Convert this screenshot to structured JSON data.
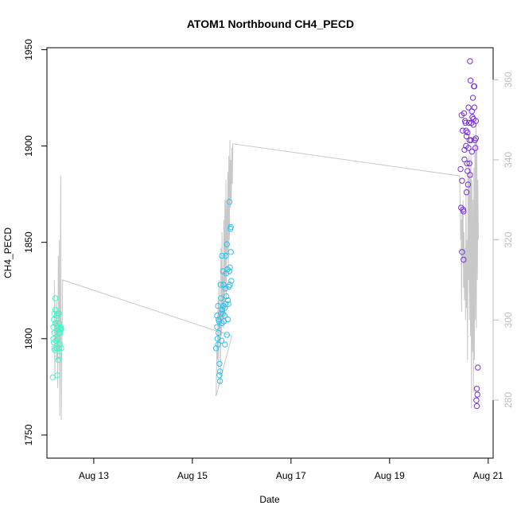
{
  "chart_data": {
    "type": "scatter",
    "title": "ATOM1 Northbound CH4_PECD",
    "xlabel": "Date",
    "ylabel": "CH4_PECD",
    "x_ticks": [
      {
        "day": 13,
        "label": "Aug 13"
      },
      {
        "day": 15,
        "label": "Aug 15"
      },
      {
        "day": 17,
        "label": "Aug 17"
      },
      {
        "day": 19,
        "label": "Aug 19"
      },
      {
        "day": 21,
        "label": "Aug 21"
      }
    ],
    "xlim": [
      12.05,
      21.1
    ],
    "y_ticks": [
      1750,
      1800,
      1850,
      1900,
      1950
    ],
    "ylim": [
      1738,
      1951
    ],
    "y2_ticks": [
      280,
      300,
      320,
      340,
      360
    ],
    "y2lim": [
      265.5,
      368
    ],
    "grid": false,
    "legend": false,
    "colors": {
      "axis": "#000000",
      "secondary_axis": "#bdbdbd",
      "secondary_line": "#c8c8c8",
      "segment_1": "#3ff7c8",
      "segment_2": "#2cc2ee",
      "segment_3": "#7a2ee6"
    },
    "scatter_series": [
      {
        "color": "segment_1",
        "x": [
          12.17,
          12.18,
          12.18,
          12.19,
          12.19,
          12.2,
          12.2,
          12.2,
          12.21,
          12.22,
          12.22,
          12.22,
          12.23,
          12.24,
          12.25,
          12.25,
          12.26,
          12.27,
          12.27,
          12.28,
          12.28,
          12.29,
          12.29,
          12.3,
          12.3,
          12.3,
          12.31,
          12.31,
          12.32,
          12.33,
          12.33,
          12.34,
          12.34
        ],
        "y": [
          1780,
          1800,
          1806,
          1798,
          1810,
          1795,
          1803,
          1813,
          1794,
          1808,
          1815,
          1821,
          1799,
          1795,
          1812,
          1812,
          1781,
          1813,
          1800,
          1806,
          1789,
          1795,
          1803,
          1808,
          1791,
          1813,
          1805,
          1797,
          1803,
          1805,
          1806,
          1795,
          1805
        ]
      },
      {
        "color": "segment_2",
        "x": [
          15.48,
          15.5,
          15.5,
          15.51,
          15.52,
          15.52,
          15.53,
          15.53,
          15.54,
          15.55,
          15.55,
          15.56,
          15.56,
          15.57,
          15.58,
          15.58,
          15.59,
          15.6,
          15.6,
          15.61,
          15.62,
          15.62,
          15.63,
          15.63,
          15.64,
          15.65,
          15.66,
          15.66,
          15.67,
          15.67,
          15.68,
          15.69,
          15.69,
          15.7,
          15.7,
          15.71,
          15.72,
          15.72,
          15.73,
          15.74,
          15.75,
          15.75,
          15.76,
          15.76,
          15.77,
          15.78,
          15.78,
          15.79
        ],
        "y": [
          1795,
          1812,
          1806,
          1800,
          1797,
          1817,
          1810,
          1803,
          1809,
          1787,
          1781,
          1783,
          1778,
          1828,
          1813,
          1821,
          1799,
          1808,
          1843,
          1815,
          1813,
          1835,
          1817,
          1828,
          1809,
          1812,
          1816,
          1797,
          1826,
          1818,
          1843,
          1834,
          1822,
          1849,
          1802,
          1836,
          1810,
          1820,
          1818,
          1827,
          1871,
          1835,
          1828,
          1837,
          1857,
          1858,
          1845,
          1830
        ]
      },
      {
        "color": "segment_3",
        "x": [
          20.44,
          20.45,
          20.46,
          20.47,
          20.47,
          20.48,
          20.49,
          20.5,
          20.5,
          20.51,
          20.52,
          20.52,
          20.53,
          20.54,
          20.55,
          20.55,
          20.56,
          20.56,
          20.57,
          20.58,
          20.58,
          20.59,
          20.6,
          20.6,
          20.61,
          20.62,
          20.62,
          20.63,
          20.63,
          20.64,
          20.65,
          20.65,
          20.66,
          20.67,
          20.67,
          20.68,
          20.69,
          20.7,
          20.7,
          20.71,
          20.72,
          20.72,
          20.73,
          20.74,
          20.75,
          20.75,
          20.76,
          20.77,
          20.77,
          20.78,
          20.79
        ],
        "y": [
          1888,
          1868,
          1916,
          1882,
          1845,
          1908,
          1867,
          1841,
          1866,
          1917,
          1898,
          1893,
          1913,
          1912,
          1908,
          1900,
          1905,
          1876,
          1891,
          1887,
          1907,
          1880,
          1920,
          1899,
          1912,
          1891,
          1903,
          1885,
          1944,
          1934,
          1903,
          1903,
          1912,
          1897,
          1918,
          1915,
          1925,
          1911,
          1914,
          1931,
          1931,
          1920,
          1903,
          1899,
          1913,
          1904,
          1768,
          1774,
          1765,
          1771,
          1785
        ]
      }
    ],
    "line_series": {
      "axis": "secondary",
      "x": [
        12.2,
        12.21,
        12.22,
        12.23,
        12.24,
        12.25,
        12.26,
        12.27,
        12.28,
        12.29,
        12.3,
        12.31,
        12.32,
        12.33,
        12.34,
        12.35,
        12.36,
        12.37,
        15.8,
        15.48,
        15.5,
        15.51,
        15.52,
        15.53,
        15.54,
        15.55,
        15.56,
        15.57,
        15.58,
        15.59,
        15.6,
        15.61,
        15.62,
        15.63,
        15.64,
        15.65,
        15.66,
        15.67,
        15.68,
        15.69,
        15.7,
        15.71,
        15.72,
        15.73,
        15.74,
        15.75,
        15.76,
        15.77,
        15.78,
        15.79,
        15.8,
        15.81,
        15.82,
        20.42,
        20.43,
        20.44,
        20.45,
        20.46,
        20.47,
        20.48,
        20.49,
        20.5,
        20.51,
        20.52,
        20.53,
        20.54,
        20.55,
        20.56,
        20.57,
        20.58,
        20.59,
        20.6,
        20.61,
        20.62,
        20.63,
        20.64,
        20.65,
        20.66,
        20.67,
        20.68,
        20.69,
        20.7,
        20.71,
        20.72,
        20.73,
        20.74,
        20.75,
        20.76,
        20.77,
        20.78,
        20.79,
        20.8
      ],
      "y": [
        310,
        285,
        300,
        296,
        305,
        290,
        300,
        283,
        316,
        292,
        320,
        276,
        301,
        336,
        275,
        290,
        300,
        310,
        296,
        281,
        295,
        290,
        305,
        288,
        310,
        298,
        302,
        284,
        318,
        296,
        322,
        300,
        312,
        298,
        325,
        301,
        330,
        307,
        335,
        305,
        329,
        316,
        337,
        313,
        341,
        320,
        345,
        328,
        340,
        330,
        343,
        334,
        344,
        336,
        330,
        320,
        325,
        302,
        328,
        315,
        330,
        308,
        322,
        305,
        318,
        300,
        333,
        303,
        320,
        290,
        336,
        310,
        341,
        300,
        338,
        296,
        342,
        278,
        335,
        292,
        330,
        282,
        338,
        290,
        346,
        300,
        350,
        298,
        345,
        310,
        335,
        320
      ]
    }
  }
}
